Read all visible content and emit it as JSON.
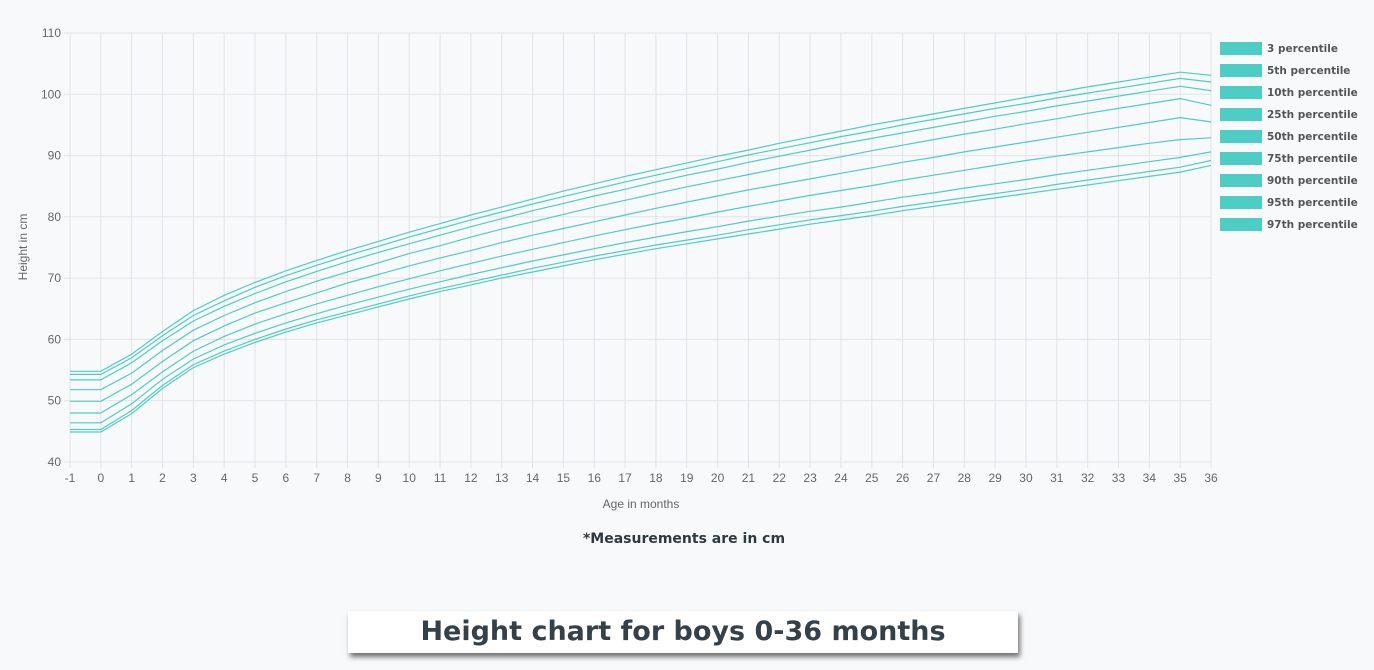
{
  "chart_data": {
    "type": "line",
    "xlabel": "Age in months",
    "ylabel": "Height in cm",
    "xlim": [
      -1,
      36
    ],
    "ylim": [
      40,
      110
    ],
    "x_ticks": [
      -1,
      0,
      1,
      2,
      3,
      4,
      5,
      6,
      7,
      8,
      9,
      10,
      11,
      12,
      13,
      14,
      15,
      16,
      17,
      18,
      19,
      20,
      21,
      22,
      23,
      24,
      25,
      26,
      27,
      28,
      29,
      30,
      31,
      32,
      33,
      34,
      35,
      36
    ],
    "y_ticks": [
      40,
      50,
      60,
      70,
      80,
      90,
      100,
      110
    ],
    "grid": true,
    "legend_position": "right",
    "line_color": "#4ecdc4",
    "x": [
      -1,
      0,
      1,
      2,
      3,
      4,
      5,
      6,
      7,
      8,
      9,
      10,
      11,
      12,
      13,
      14,
      15,
      16,
      17,
      18,
      19,
      20,
      21,
      22,
      23,
      24,
      25,
      26,
      27,
      28,
      29,
      30,
      31,
      32,
      33,
      34,
      35,
      36
    ],
    "series": [
      {
        "name": "3 percentile",
        "values": [
          44.9,
          44.9,
          47.9,
          52.0,
          55.4,
          57.6,
          59.5,
          61.2,
          62.7,
          64.0,
          65.3,
          66.6,
          67.8,
          68.9,
          70.0,
          71.0,
          72.0,
          73.0,
          73.9,
          74.8,
          75.6,
          76.4,
          77.2,
          78.0,
          78.8,
          79.5,
          80.2,
          81.0,
          81.7,
          82.4,
          83.1,
          83.8,
          84.5,
          85.2,
          85.9,
          86.6,
          87.3,
          88.4
        ]
      },
      {
        "name": "5th percentile",
        "values": [
          45.3,
          45.3,
          48.4,
          52.5,
          55.9,
          58.1,
          60.0,
          61.7,
          63.2,
          64.5,
          65.8,
          67.1,
          68.3,
          69.4,
          70.5,
          71.6,
          72.6,
          73.6,
          74.5,
          75.4,
          76.2,
          77.0,
          77.9,
          78.7,
          79.5,
          80.2,
          80.9,
          81.7,
          82.4,
          83.1,
          83.8,
          84.5,
          85.3,
          86.0,
          86.7,
          87.4,
          88.1,
          89.2
        ]
      },
      {
        "name": "10th percentile",
        "values": [
          46.4,
          46.4,
          49.5,
          53.5,
          56.8,
          59.1,
          61.0,
          62.7,
          64.2,
          65.6,
          66.9,
          68.2,
          69.4,
          70.6,
          71.7,
          72.8,
          73.8,
          74.8,
          75.8,
          76.7,
          77.6,
          78.4,
          79.3,
          80.1,
          80.9,
          81.6,
          82.4,
          83.2,
          83.9,
          84.7,
          85.4,
          86.1,
          86.9,
          87.6,
          88.3,
          89.0,
          89.7,
          90.6
        ]
      },
      {
        "name": "25th percentile",
        "values": [
          48.0,
          48.0,
          51.0,
          54.7,
          58.1,
          60.5,
          62.5,
          64.2,
          65.8,
          67.2,
          68.6,
          69.9,
          71.2,
          72.4,
          73.6,
          74.7,
          75.8,
          76.9,
          77.9,
          78.9,
          79.8,
          80.8,
          81.7,
          82.6,
          83.5,
          84.3,
          85.1,
          86.0,
          86.8,
          87.6,
          88.4,
          89.2,
          89.9,
          90.6,
          91.3,
          92.0,
          92.6,
          92.9
        ]
      },
      {
        "name": "50th percentile",
        "values": [
          49.9,
          49.9,
          52.7,
          56.4,
          59.8,
          62.2,
          64.3,
          66.0,
          67.6,
          69.2,
          70.6,
          72.0,
          73.3,
          74.5,
          75.8,
          77.0,
          78.1,
          79.2,
          80.3,
          81.4,
          82.4,
          83.4,
          84.4,
          85.3,
          86.2,
          87.1,
          88.0,
          88.9,
          89.7,
          90.6,
          91.4,
          92.2,
          93.0,
          93.8,
          94.6,
          95.4,
          96.2,
          95.5
        ]
      },
      {
        "name": "75th percentile",
        "values": [
          51.8,
          51.8,
          54.5,
          58.2,
          61.5,
          63.9,
          66.0,
          67.8,
          69.5,
          71.0,
          72.5,
          74.0,
          75.3,
          76.7,
          78.0,
          79.2,
          80.4,
          81.6,
          82.7,
          83.8,
          84.9,
          85.9,
          86.9,
          87.9,
          88.9,
          89.8,
          90.8,
          91.7,
          92.6,
          93.5,
          94.3,
          95.2,
          96.0,
          96.9,
          97.7,
          98.5,
          99.3,
          98.2
        ]
      },
      {
        "name": "90th percentile",
        "values": [
          53.4,
          53.4,
          56.2,
          59.8,
          63.0,
          65.4,
          67.5,
          69.4,
          71.1,
          72.7,
          74.2,
          75.6,
          77.0,
          78.4,
          79.7,
          81.0,
          82.2,
          83.4,
          84.5,
          85.7,
          86.8,
          87.8,
          88.9,
          89.9,
          90.9,
          91.9,
          92.8,
          93.7,
          94.6,
          95.5,
          96.4,
          97.2,
          98.1,
          98.9,
          99.7,
          100.5,
          101.3,
          100.6
        ]
      },
      {
        "name": "95th percentile",
        "values": [
          54.3,
          54.3,
          57.0,
          60.6,
          63.9,
          66.3,
          68.5,
          70.4,
          72.1,
          73.7,
          75.2,
          76.7,
          78.1,
          79.5,
          80.8,
          82.1,
          83.3,
          84.5,
          85.7,
          86.8,
          87.9,
          89.0,
          90.1,
          91.1,
          92.1,
          93.1,
          94.0,
          95.0,
          95.9,
          96.8,
          97.7,
          98.5,
          99.4,
          100.2,
          101.0,
          101.8,
          102.6,
          102.0
        ]
      },
      {
        "name": "97th percentile",
        "values": [
          54.8,
          54.8,
          57.6,
          61.3,
          64.7,
          67.2,
          69.3,
          71.2,
          72.9,
          74.5,
          76.0,
          77.5,
          78.9,
          80.3,
          81.6,
          82.9,
          84.2,
          85.4,
          86.6,
          87.7,
          88.8,
          89.9,
          90.9,
          92.0,
          93.0,
          94.0,
          95.0,
          95.9,
          96.8,
          97.7,
          98.6,
          99.5,
          100.3,
          101.2,
          102.0,
          102.8,
          103.6,
          103.1
        ]
      }
    ]
  },
  "note": "*Measurements are in cm",
  "banner_title": "Height chart for boys 0-36 months"
}
